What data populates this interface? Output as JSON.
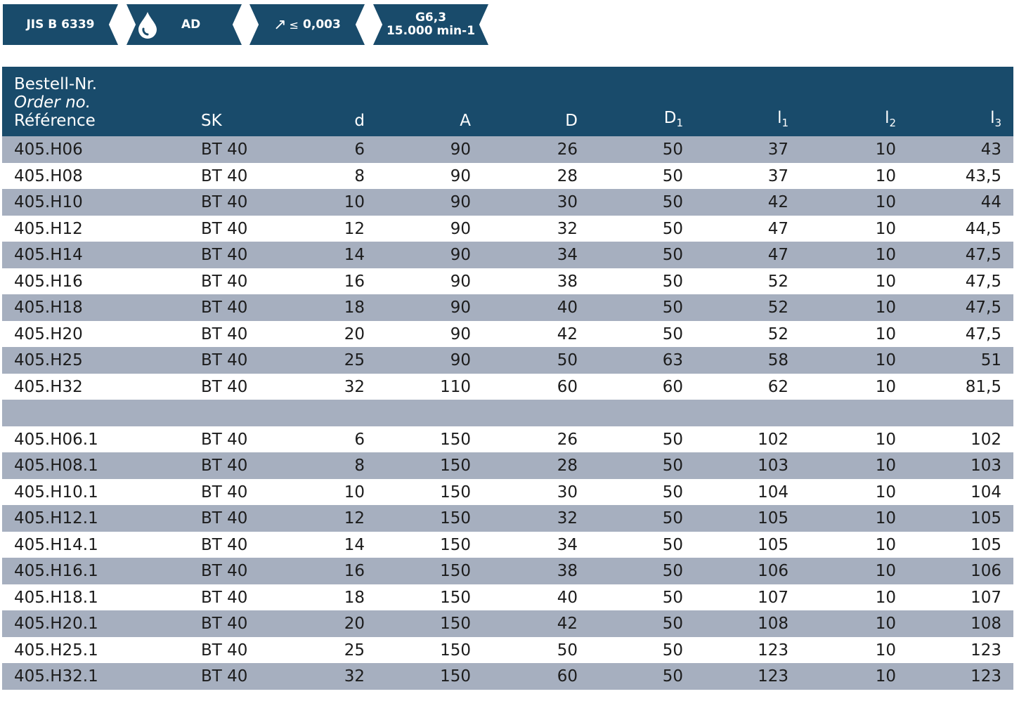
{
  "badges": {
    "standard": "JIS B 6339",
    "coolant": "AD",
    "runout_symbol": "↗",
    "runout_le": "≤",
    "runout_value": "0,003",
    "balance_line1": "G6,3",
    "balance_line2": "15.000 min-1"
  },
  "colors": {
    "header_bg": "#194b6b",
    "row_shade": "#a6afbf",
    "row_white": "#ffffff",
    "text": "#1c1c1c"
  },
  "table": {
    "header": {
      "ref_de": "Bestell-Nr.",
      "ref_en": "Order no.",
      "ref_fr": "Référence",
      "sk": "SK",
      "d": "d",
      "A": "A",
      "D": "D",
      "D1_base": "D",
      "D1_sub": "1",
      "l1_base": "l",
      "l1_sub": "1",
      "l2_base": "l",
      "l2_sub": "2",
      "l3_base": "l",
      "l3_sub": "3"
    },
    "group1": [
      {
        "ref": "405.H06",
        "sk": "BT 40",
        "d": "6",
        "A": "90",
        "D": "26",
        "D1": "50",
        "l1": "37",
        "l2": "10",
        "l3": "43"
      },
      {
        "ref": "405.H08",
        "sk": "BT 40",
        "d": "8",
        "A": "90",
        "D": "28",
        "D1": "50",
        "l1": "37",
        "l2": "10",
        "l3": "43,5"
      },
      {
        "ref": "405.H10",
        "sk": "BT 40",
        "d": "10",
        "A": "90",
        "D": "30",
        "D1": "50",
        "l1": "42",
        "l2": "10",
        "l3": "44"
      },
      {
        "ref": "405.H12",
        "sk": "BT 40",
        "d": "12",
        "A": "90",
        "D": "32",
        "D1": "50",
        "l1": "47",
        "l2": "10",
        "l3": "44,5"
      },
      {
        "ref": "405.H14",
        "sk": "BT 40",
        "d": "14",
        "A": "90",
        "D": "34",
        "D1": "50",
        "l1": "47",
        "l2": "10",
        "l3": "47,5"
      },
      {
        "ref": "405.H16",
        "sk": "BT 40",
        "d": "16",
        "A": "90",
        "D": "38",
        "D1": "50",
        "l1": "52",
        "l2": "10",
        "l3": "47,5"
      },
      {
        "ref": "405.H18",
        "sk": "BT 40",
        "d": "18",
        "A": "90",
        "D": "40",
        "D1": "50",
        "l1": "52",
        "l2": "10",
        "l3": "47,5"
      },
      {
        "ref": "405.H20",
        "sk": "BT 40",
        "d": "20",
        "A": "90",
        "D": "42",
        "D1": "50",
        "l1": "52",
        "l2": "10",
        "l3": "47,5"
      },
      {
        "ref": "405.H25",
        "sk": "BT 40",
        "d": "25",
        "A": "90",
        "D": "50",
        "D1": "63",
        "l1": "58",
        "l2": "10",
        "l3": "51"
      },
      {
        "ref": "405.H32",
        "sk": "BT 40",
        "d": "32",
        "A": "110",
        "D": "60",
        "D1": "60",
        "l1": "62",
        "l2": "10",
        "l3": "81,5"
      }
    ],
    "group2": [
      {
        "ref": "405.H06.1",
        "sk": "BT 40",
        "d": "6",
        "A": "150",
        "D": "26",
        "D1": "50",
        "l1": "102",
        "l2": "10",
        "l3": "102"
      },
      {
        "ref": "405.H08.1",
        "sk": "BT 40",
        "d": "8",
        "A": "150",
        "D": "28",
        "D1": "50",
        "l1": "103",
        "l2": "10",
        "l3": "103"
      },
      {
        "ref": "405.H10.1",
        "sk": "BT 40",
        "d": "10",
        "A": "150",
        "D": "30",
        "D1": "50",
        "l1": "104",
        "l2": "10",
        "l3": "104"
      },
      {
        "ref": "405.H12.1",
        "sk": "BT 40",
        "d": "12",
        "A": "150",
        "D": "32",
        "D1": "50",
        "l1": "105",
        "l2": "10",
        "l3": "105"
      },
      {
        "ref": "405.H14.1",
        "sk": "BT 40",
        "d": "14",
        "A": "150",
        "D": "34",
        "D1": "50",
        "l1": "105",
        "l2": "10",
        "l3": "105"
      },
      {
        "ref": "405.H16.1",
        "sk": "BT 40",
        "d": "16",
        "A": "150",
        "D": "38",
        "D1": "50",
        "l1": "106",
        "l2": "10",
        "l3": "106"
      },
      {
        "ref": "405.H18.1",
        "sk": "BT 40",
        "d": "18",
        "A": "150",
        "D": "40",
        "D1": "50",
        "l1": "107",
        "l2": "10",
        "l3": "107"
      },
      {
        "ref": "405.H20.1",
        "sk": "BT 40",
        "d": "20",
        "A": "150",
        "D": "42",
        "D1": "50",
        "l1": "108",
        "l2": "10",
        "l3": "108"
      },
      {
        "ref": "405.H25.1",
        "sk": "BT 40",
        "d": "25",
        "A": "150",
        "D": "50",
        "D1": "50",
        "l1": "123",
        "l2": "10",
        "l3": "123"
      },
      {
        "ref": "405.H32.1",
        "sk": "BT 40",
        "d": "32",
        "A": "150",
        "D": "60",
        "D1": "50",
        "l1": "123",
        "l2": "10",
        "l3": "123"
      }
    ]
  }
}
